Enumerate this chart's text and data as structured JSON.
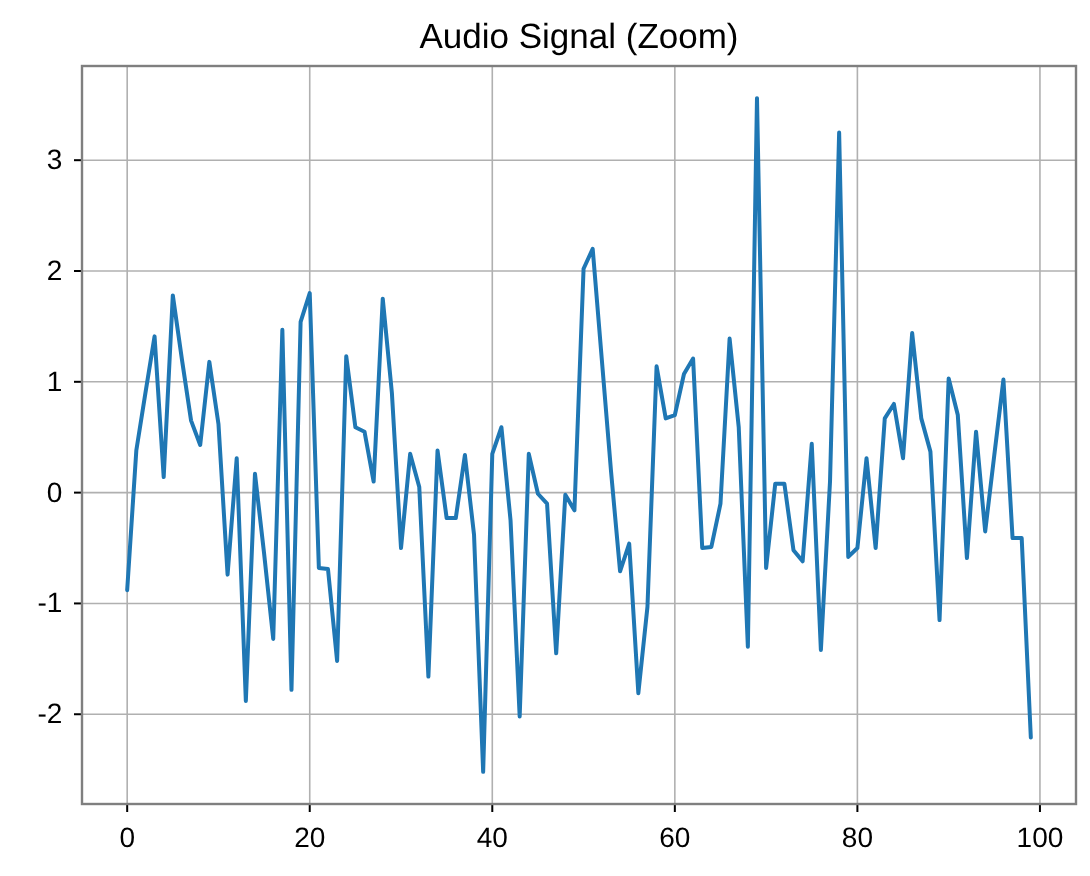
{
  "chart_data": {
    "type": "line",
    "title": "Audio Signal (Zoom)",
    "x": [
      0,
      1,
      2,
      3,
      4,
      5,
      6,
      7,
      8,
      9,
      10,
      11,
      12,
      13,
      14,
      15,
      16,
      17,
      18,
      19,
      20,
      21,
      22,
      23,
      24,
      25,
      26,
      27,
      28,
      29,
      30,
      31,
      32,
      33,
      34,
      35,
      36,
      37,
      38,
      39,
      40,
      41,
      42,
      43,
      44,
      45,
      46,
      47,
      48,
      49,
      50,
      51,
      52,
      53,
      54,
      55,
      56,
      57,
      58,
      59,
      60,
      61,
      62,
      63,
      64,
      65,
      66,
      67,
      68,
      69,
      70,
      71,
      72,
      73,
      74,
      75,
      76,
      77,
      78,
      79,
      80,
      81,
      82,
      83,
      84,
      85,
      86,
      87,
      88,
      89,
      90,
      91,
      92,
      93,
      94,
      95,
      96,
      97,
      98,
      99
    ],
    "series": [
      {
        "color": "#1f77b4",
        "values": [
          -0.88,
          0.38,
          0.9,
          1.41,
          0.14,
          1.78,
          1.2,
          0.65,
          0.43,
          1.18,
          0.62,
          -0.74,
          0.31,
          -1.88,
          0.17,
          -0.55,
          -1.32,
          1.47,
          -1.78,
          1.54,
          1.8,
          -0.68,
          -0.69,
          -1.52,
          1.23,
          0.59,
          0.55,
          0.1,
          1.75,
          0.9,
          -0.5,
          0.35,
          0.05,
          -1.66,
          0.38,
          -0.23,
          -0.23,
          0.34,
          -0.38,
          -2.52,
          0.35,
          0.59,
          -0.25,
          -2.02,
          0.35,
          -0.01,
          -0.1,
          -1.45,
          -0.02,
          -0.16,
          2.02,
          2.2,
          1.2,
          0.2,
          -0.71,
          -0.46,
          -1.81,
          -1.03,
          1.14,
          0.67,
          0.7,
          1.07,
          1.21,
          -0.5,
          -0.49,
          -0.1,
          1.39,
          0.59,
          -1.39,
          3.56,
          -0.68,
          0.08,
          0.08,
          -0.52,
          -0.62,
          0.44,
          -1.42,
          0.1,
          3.25,
          -0.58,
          -0.5,
          0.31,
          -0.5,
          0.67,
          0.8,
          0.31,
          1.44,
          0.67,
          0.37,
          -1.15,
          1.03,
          0.7,
          -0.59,
          0.55,
          -0.35,
          0.34,
          1.02,
          -0.41,
          -0.41,
          -2.21
        ]
      }
    ],
    "xlim": [
      -4.95,
      103.95
    ],
    "ylim": [
      -2.81,
      3.85
    ],
    "xticks": [
      0,
      20,
      40,
      60,
      80,
      100
    ],
    "yticks": [
      -2,
      -1,
      0,
      1,
      2,
      3
    ],
    "grid": true,
    "line_style": "solid",
    "marker": "none"
  }
}
